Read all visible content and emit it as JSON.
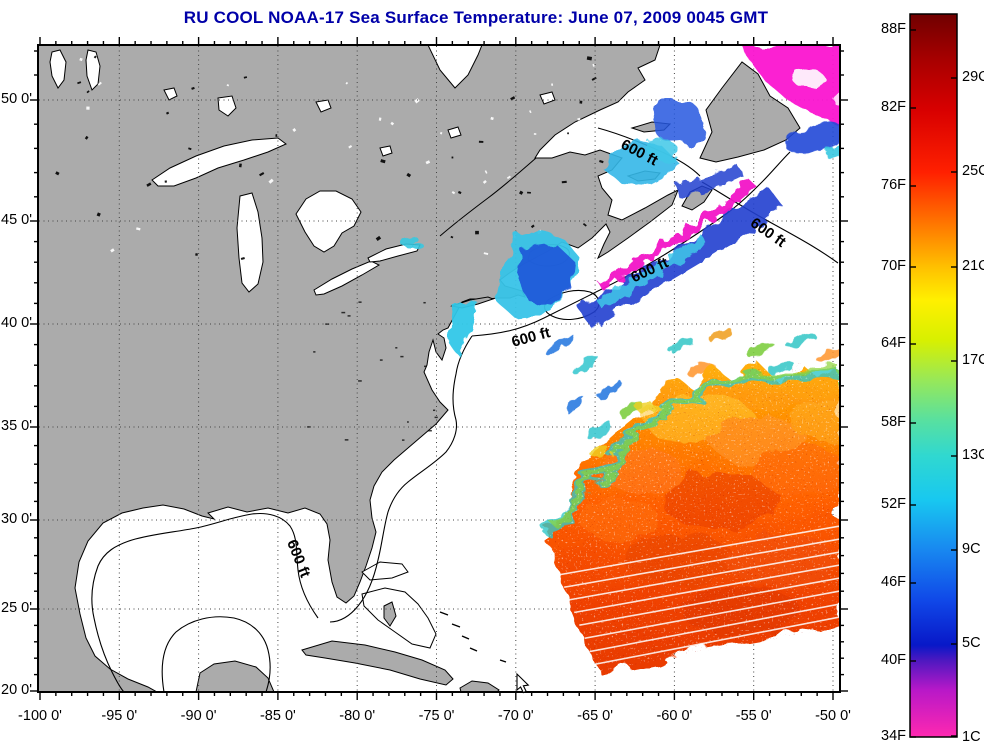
{
  "title": "RU COOL  NOAA-17  Sea Surface Temperature:  June 07, 2009 0045 GMT",
  "chart_data": {
    "type": "heatmap",
    "title": "RU COOL  NOAA-17  Sea Surface Temperature:  June 07, 2009 0045 GMT",
    "subtitle_parts": {
      "lab": "RU COOL",
      "satellite": "NOAA-17",
      "variable": "Sea Surface Temperature",
      "timestamp": "June 07, 2009 0045 GMT"
    },
    "projection": "mercator",
    "grid": "dotted",
    "x_axis": {
      "ticks": [
        "-100 0'",
        "-95 0'",
        "-90 0'",
        "-85 0'",
        "-80 0'",
        "-75 0'",
        "-70 0'",
        "-65 0'",
        "-60 0'",
        "-55 0'",
        "-50 0'"
      ],
      "range_deg": [
        -100,
        -50
      ],
      "minor_tick_interval_deg": 1
    },
    "y_axis": {
      "ticks": [
        "50 0'",
        "45 0'",
        "40 0'",
        "35 0'",
        "30 0'",
        "25 0'",
        "20 0'"
      ],
      "range_deg": [
        20,
        52.3
      ],
      "minor_tick_interval_deg": 1
    },
    "colorbar": {
      "orientation": "vertical",
      "fahrenheit_labels": [
        "88F",
        "82F",
        "76F",
        "70F",
        "64F",
        "58F",
        "52F",
        "46F",
        "40F",
        "34F"
      ],
      "celsius_labels": [
        "29C",
        "25C",
        "21C",
        "17C",
        "13C",
        "9C",
        "5C",
        "1C"
      ],
      "scale_top_to_bottom": [
        "dark red",
        "red",
        "orange",
        "yellow",
        "green",
        "cyan",
        "blue",
        "dark blue",
        "purple",
        "magenta"
      ],
      "colors_top_to_bottom": [
        "#700000",
        "#D80000",
        "#FF2000",
        "#FFC000",
        "#FFF000",
        "#98E858",
        "#30D8D0",
        "#18C8F0",
        "#1888F0",
        "#0818C8",
        "#B818C8",
        "#FF28B0"
      ]
    },
    "contour_label": "600 ft",
    "contour_label_count": 5,
    "legend_position": "right colorbar",
    "notable_features": [
      "gray land mass of eastern North America with Great Lakes",
      "warm orange-red satellite SST swath in the open Atlantic (lower right) with scan-line stripes",
      "cold blue/cyan water in Gulf of Maine, Scotian Shelf and Gulf of St. Lawrence",
      "magenta (coldest) water near Newfoundland and along the Scotian Shelf front",
      "600 ft depth contour lines along the shelf and in the Gulf of Mexico"
    ]
  }
}
